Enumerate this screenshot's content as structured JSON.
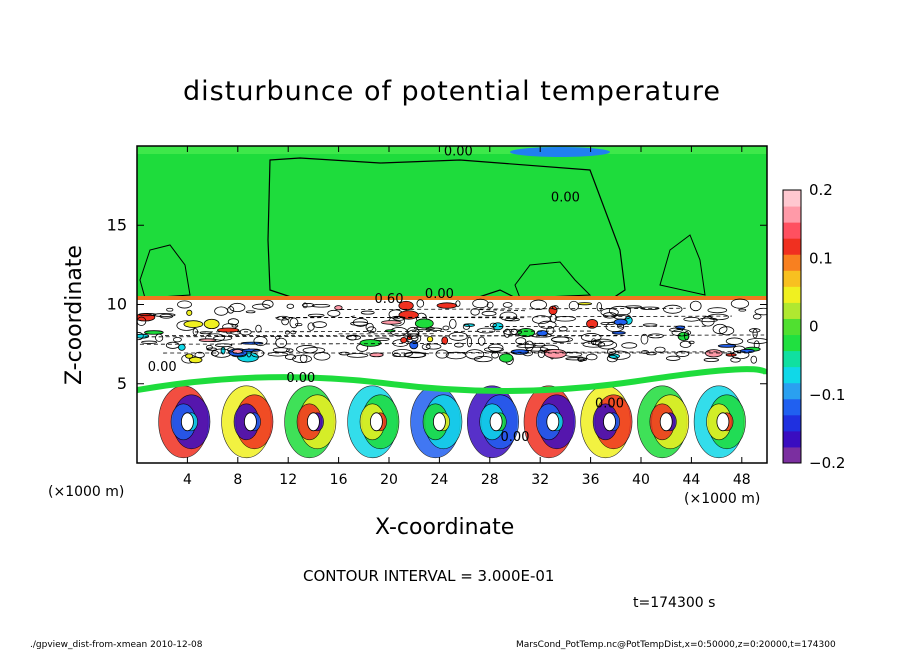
{
  "title": "disturbunce of potential temperature",
  "footer": {
    "left": "./gpview_dist-from-xmean  2010-12-08",
    "right": "MarsCond_PotTemp.nc@PotTempDist,x=0:50000,z=0:20000,t=174300"
  },
  "contour_interval": "CONTOUR INTERVAL = 3.000E-01",
  "time_label": "t=174300 s",
  "chart_data": {
    "type": "heatmap",
    "title": "disturbunce of potential temperature",
    "xlabel": "X-coordinate",
    "ylabel": "Z-coordinate",
    "x_unit_left": "(×1000 m)",
    "x_unit_right": "(×1000 m)",
    "xlim": [
      0,
      50
    ],
    "ylim": [
      0,
      20
    ],
    "x_ticks": [
      4,
      8,
      12,
      16,
      20,
      24,
      28,
      32,
      36,
      40,
      44,
      48
    ],
    "y_ticks": [
      5,
      10,
      15
    ],
    "colorbar": {
      "range": [
        -0.2,
        0.2
      ],
      "ticks": [
        "0.2",
        "0.1",
        "0",
        "−0.1",
        "−0.2"
      ],
      "tick_values": [
        0.2,
        0.1,
        0,
        -0.1,
        -0.2
      ],
      "colors": [
        "#7b2fa0",
        "#3a0dc0",
        "#1f30e0",
        "#2060f0",
        "#2aa0f0",
        "#10d8e8",
        "#10e0a0",
        "#20e040",
        "#50e030",
        "#b0e830",
        "#f0f020",
        "#f8c020",
        "#f88020",
        "#f03020",
        "#ff5060",
        "#ff9aa8",
        "#ffc8d0"
      ]
    },
    "contour_labels": [
      "0.00",
      "0.00",
      "0.60",
      "0.00",
      "0.00",
      "0.00",
      "0.00",
      "0.00"
    ],
    "colors": {
      "background_upper": "#1edc3c",
      "band": "#f07820",
      "white_region": "#ffffff"
    }
  }
}
